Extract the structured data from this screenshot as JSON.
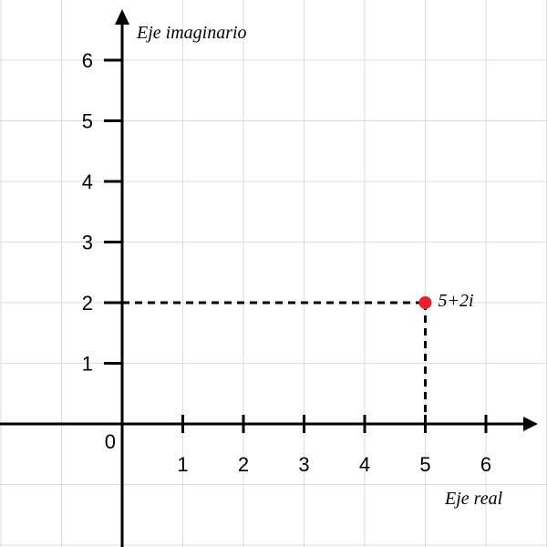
{
  "chart_data": {
    "type": "scatter",
    "title": "",
    "xlabel": "Eje real",
    "ylabel": "Eje imaginario",
    "origin_label": "0",
    "x_ticks": [
      "1",
      "2",
      "3",
      "4",
      "5",
      "6"
    ],
    "y_ticks": [
      "1",
      "2",
      "3",
      "4",
      "5",
      "6"
    ],
    "xlim": [
      -2,
      6.8
    ],
    "ylim": [
      -2,
      6.9
    ],
    "grid": true,
    "points": [
      {
        "x": 5,
        "y": 2,
        "label": "5+2i"
      }
    ],
    "colors": {
      "grid": "#dddddd",
      "axis": "#000000",
      "point": "#e8202a",
      "guide": "#000000"
    }
  }
}
